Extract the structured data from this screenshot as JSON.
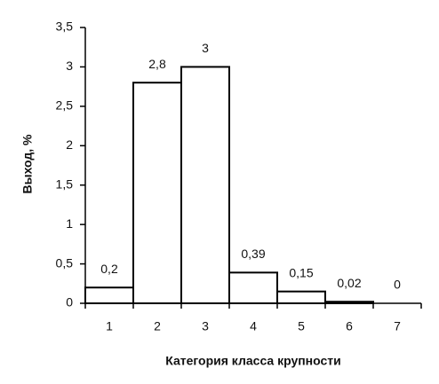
{
  "chart_data": {
    "type": "bar",
    "y_label": "Выход, %",
    "x_label": "Категория класса крупности",
    "categories": [
      "1",
      "2",
      "3",
      "4",
      "5",
      "6",
      "7"
    ],
    "values": [
      0.2,
      2.8,
      3,
      0.39,
      0.15,
      0.02,
      0
    ],
    "value_labels": [
      "0,2",
      "2,8",
      "3",
      "0,39",
      "0,15",
      "0,02",
      "0"
    ],
    "color": "#ffffff",
    "ylim": [
      0,
      3.5
    ],
    "yticks": [
      0,
      {
        "value": 0.5,
        "label": "0,5"
      },
      1,
      {
        "value": 1.5,
        "label": "1,5"
      },
      2,
      {
        "value": 2.5,
        "label": "2,5"
      },
      3,
      {
        "value": 3.5,
        "label": "3,5"
      }
    ],
    "grid": false
  }
}
